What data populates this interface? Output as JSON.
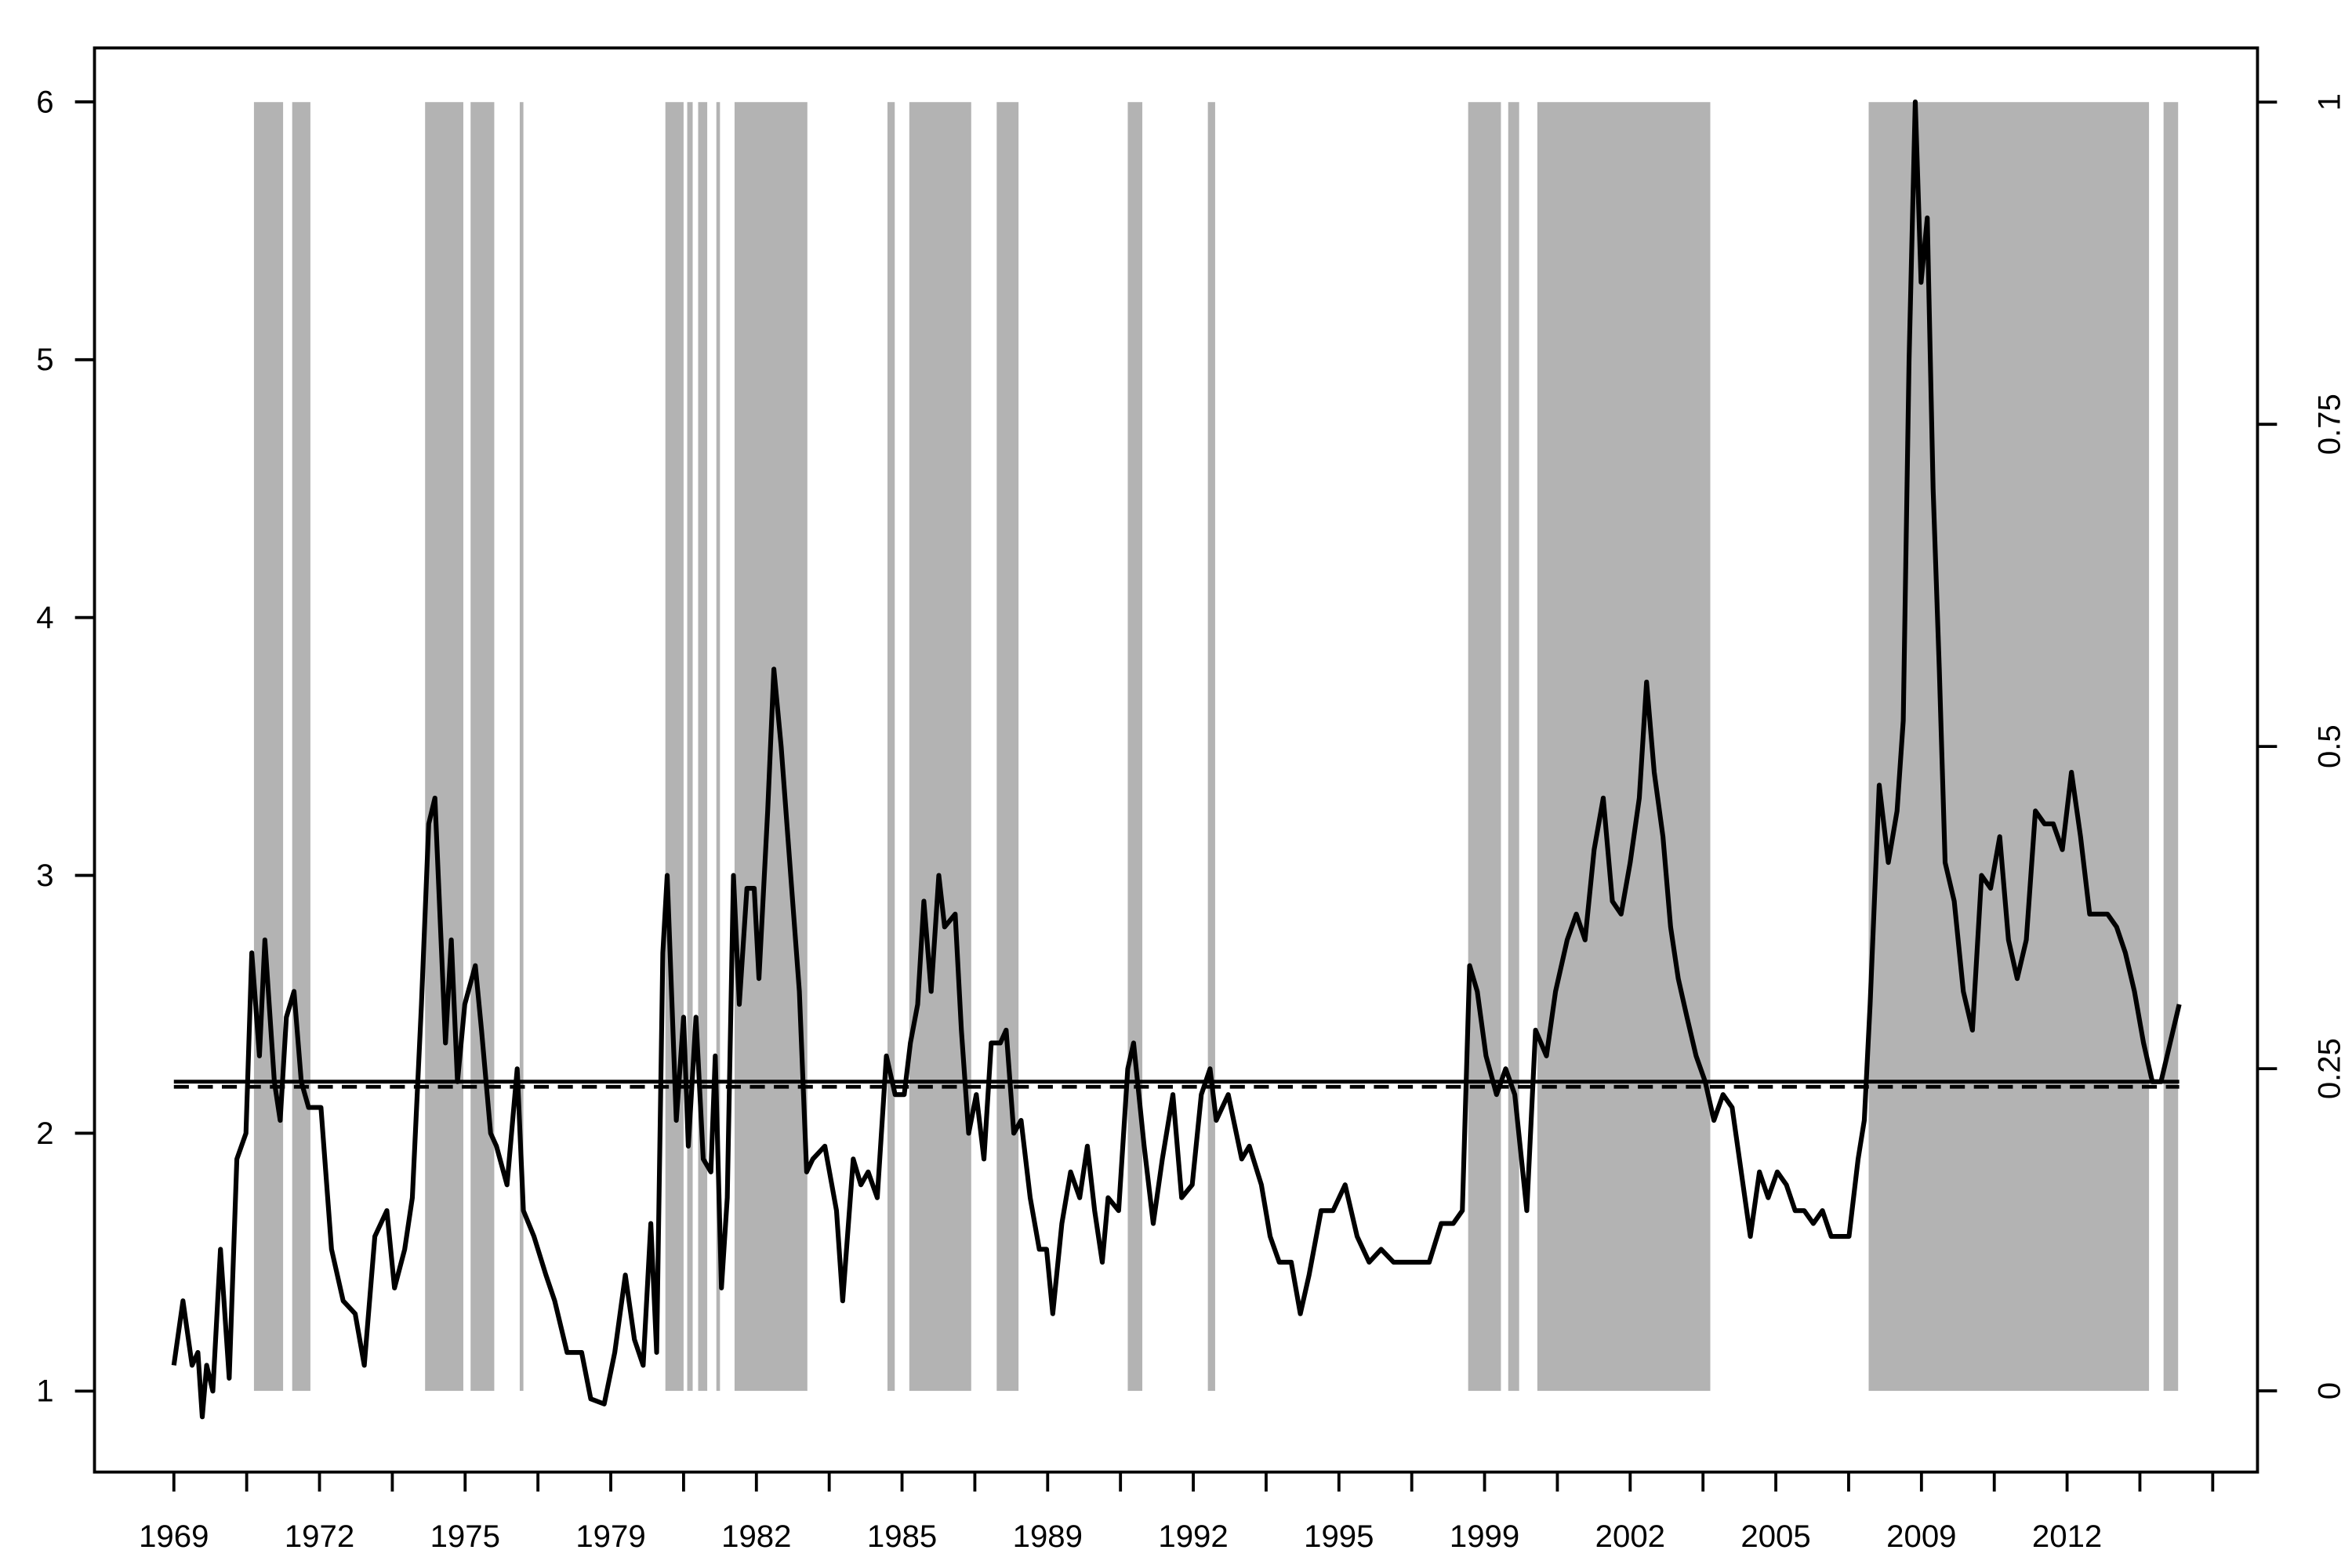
{
  "chart_data": {
    "type": "line",
    "xlim": [
      -21.8,
      572.3
    ],
    "ylim": [
      0.686,
      6.209
    ],
    "y2lim": [
      -0.063,
      1.042
    ],
    "xticks": [
      {
        "value": 0,
        "label": "1969"
      },
      {
        "value": 40,
        "label": "1972"
      },
      {
        "value": 80,
        "label": "1975"
      },
      {
        "value": 120,
        "label": "1979"
      },
      {
        "value": 160,
        "label": "1982"
      },
      {
        "value": 200,
        "label": "1985"
      },
      {
        "value": 240,
        "label": "1989"
      },
      {
        "value": 280,
        "label": "1992"
      },
      {
        "value": 320,
        "label": "1995"
      },
      {
        "value": 360,
        "label": "1999"
      },
      {
        "value": 400,
        "label": "2002"
      },
      {
        "value": 440,
        "label": "2005"
      },
      {
        "value": 480,
        "label": "2009"
      },
      {
        "value": 520,
        "label": "2012"
      }
    ],
    "xminorticks": [
      20,
      60,
      100,
      140,
      180,
      220,
      260,
      300,
      340,
      380,
      420,
      460,
      500,
      540,
      560
    ],
    "yticks": [
      1,
      2,
      3,
      4,
      5,
      6
    ],
    "y2ticks": [
      0,
      0.25,
      0.5,
      0.75,
      1
    ],
    "shading": {
      "axis": "y2",
      "color": "#b3b3b3",
      "bars": [
        {
          "x": [
            22,
            30
          ],
          "value": 1
        },
        {
          "x": [
            32.5,
            37.5
          ],
          "value": 1
        },
        {
          "x": [
            69,
            79.5
          ],
          "value": 1
        },
        {
          "x": [
            81.5,
            88
          ],
          "value": 1
        },
        {
          "x": [
            95,
            96
          ],
          "value": 1
        },
        {
          "x": [
            135,
            140
          ],
          "value": 1
        },
        {
          "x": [
            141,
            142.5
          ],
          "value": 1
        },
        {
          "x": [
            144,
            146.5
          ],
          "value": 1
        },
        {
          "x": [
            149,
            150
          ],
          "value": 1
        },
        {
          "x": [
            154,
            174
          ],
          "value": 1
        },
        {
          "x": [
            196,
            198
          ],
          "value": 1
        },
        {
          "x": [
            202,
            219
          ],
          "value": 1
        },
        {
          "x": [
            226,
            232
          ],
          "value": 1
        },
        {
          "x": [
            262,
            266
          ],
          "value": 1
        },
        {
          "x": [
            284,
            286
          ],
          "value": 1
        },
        {
          "x": [
            355.5,
            364.5
          ],
          "value": 1
        },
        {
          "x": [
            366.5,
            369.5
          ],
          "value": 1
        },
        {
          "x": [
            374.5,
            422
          ],
          "value": 1
        },
        {
          "x": [
            465.5,
            542.5
          ],
          "value": 1
        },
        {
          "x": [
            546.5,
            550.5
          ],
          "value": 1
        }
      ]
    },
    "hlines": [
      {
        "value": 2.2,
        "style": "solid"
      },
      {
        "value": 2.18,
        "style": "dashed"
      }
    ],
    "x": [
      0,
      2.5,
      5,
      6.6,
      7.8,
      9,
      10.7,
      12.8,
      15.2,
      17.3,
      19.8,
      21.4,
      23.5,
      25,
      27.6,
      29.2,
      30.9,
      33,
      35,
      37,
      40.4,
      43.3,
      46.5,
      49.8,
      52.3,
      55.2,
      58.5,
      60.6,
      63.4,
      65.5,
      68,
      70,
      71.7,
      74.6,
      76.2,
      77.9,
      79.9,
      82.8,
      84.5,
      87,
      88.6,
      91.5,
      94.3,
      96,
      98.9,
      102.2,
      104.6,
      108,
      112,
      114.5,
      118.2,
      121.1,
      124,
      126.5,
      128.9,
      131,
      132.6,
      134.3,
      135.5,
      138,
      140,
      141.3,
      143.4,
      145.4,
      147.5,
      148.7,
      150.4,
      152,
      153.7,
      155.3,
      157.4,
      159.4,
      160.7,
      163.1,
      164.8,
      166.8,
      168.9,
      171.8,
      173.8,
      175.5,
      178.8,
      182,
      183.7,
      186.6,
      188.7,
      190.7,
      193.2,
      195.7,
      198.1,
      200.6,
      202.3,
      204.3,
      206,
      208,
      210.1,
      211.7,
      214.6,
      216.3,
      218.3,
      220.4,
      222.5,
      224.5,
      227,
      228.6,
      230.7,
      232.7,
      235.2,
      237.7,
      239.7,
      241.4,
      243.9,
      246.3,
      248.8,
      250.9,
      252.9,
      255,
      256.6,
      259.5,
      262,
      263.6,
      266.5,
      269,
      271.5,
      274.4,
      276.8,
      279.7,
      282.2,
      284.6,
      286.3,
      289.6,
      293.3,
      295.4,
      298.7,
      301.1,
      303.6,
      306.9,
      309.4,
      311.8,
      315.1,
      318.4,
      321.7,
      325,
      328.3,
      331.6,
      335,
      338.2,
      341.5,
      344.8,
      348.1,
      351.4,
      353.9,
      355.9,
      358,
      360.4,
      363.3,
      365.8,
      368.3,
      371.6,
      374,
      377,
      379.5,
      382.7,
      385.2,
      387.6,
      390.1,
      392.6,
      395.1,
      397.5,
      400,
      402.5,
      404.5,
      406.6,
      409,
      411.1,
      413.2,
      415.6,
      418.1,
      420.6,
      423,
      425.5,
      428,
      430.5,
      433,
      435.5,
      437.9,
      440.4,
      442.9,
      445.3,
      447.8,
      450.3,
      452.8,
      455.2,
      457.7,
      460.1,
      462.6,
      464.3,
      465.9,
      468.4,
      470.9,
      473.3,
      475,
      476.6,
      478.3,
      479.9,
      481.6,
      483.2,
      484.9,
      486.5,
      489,
      491.5,
      494,
      496.5,
      499,
      501.5,
      503.9,
      506.3,
      508.8,
      511.3,
      513.8,
      516.2,
      518.7,
      521.2,
      523.7,
      526.2,
      528.6,
      531.1,
      533.6,
      536,
      538.5,
      541,
      543.4,
      545.8,
      548.3,
      550.8
    ],
    "series": [
      {
        "color": "#000000",
        "values": [
          1.1,
          1.35,
          1.1,
          1.15,
          0.9,
          1.1,
          1.0,
          1.55,
          1.05,
          1.9,
          2.0,
          2.7,
          2.3,
          2.75,
          2.2,
          2.05,
          2.45,
          2.55,
          2.2,
          2.1,
          2.1,
          1.55,
          1.35,
          1.3,
          1.1,
          1.6,
          1.7,
          1.4,
          1.55,
          1.75,
          2.5,
          3.2,
          3.3,
          2.35,
          2.75,
          2.2,
          2.5,
          2.65,
          2.4,
          2.0,
          1.95,
          1.8,
          2.25,
          1.7,
          1.6,
          1.45,
          1.35,
          1.15,
          1.15,
          0.97,
          0.95,
          1.15,
          1.45,
          1.2,
          1.1,
          1.65,
          1.15,
          2.7,
          3.0,
          2.05,
          2.45,
          1.95,
          2.45,
          1.9,
          1.85,
          2.3,
          1.4,
          1.75,
          3.0,
          2.5,
          2.95,
          2.95,
          2.6,
          3.25,
          3.8,
          3.5,
          3.1,
          2.55,
          1.85,
          1.9,
          1.95,
          1.7,
          1.35,
          1.9,
          1.8,
          1.85,
          1.75,
          2.3,
          2.15,
          2.15,
          2.35,
          2.5,
          2.9,
          2.55,
          3.0,
          2.8,
          2.85,
          2.4,
          2.0,
          2.15,
          1.9,
          2.35,
          2.35,
          2.4,
          2.0,
          2.05,
          1.75,
          1.55,
          1.55,
          1.3,
          1.65,
          1.85,
          1.75,
          1.95,
          1.7,
          1.5,
          1.75,
          1.7,
          2.25,
          2.35,
          1.95,
          1.65,
          1.9,
          2.15,
          1.75,
          1.8,
          2.15,
          2.25,
          2.05,
          2.15,
          1.9,
          1.95,
          1.8,
          1.6,
          1.5,
          1.5,
          1.3,
          1.45,
          1.7,
          1.7,
          1.8,
          1.6,
          1.5,
          1.55,
          1.5,
          1.5,
          1.5,
          1.5,
          1.65,
          1.65,
          1.7,
          2.65,
          2.55,
          2.3,
          2.15,
          2.25,
          2.15,
          1.7,
          2.4,
          2.3,
          2.55,
          2.75,
          2.85,
          2.75,
          3.1,
          3.3,
          2.9,
          2.85,
          3.05,
          3.3,
          3.75,
          3.4,
          3.15,
          2.8,
          2.6,
          2.45,
          2.3,
          2.2,
          2.05,
          2.15,
          2.1,
          1.85,
          1.6,
          1.85,
          1.75,
          1.85,
          1.8,
          1.7,
          1.7,
          1.65,
          1.7,
          1.6,
          1.6,
          1.6,
          1.9,
          2.05,
          2.5,
          3.35,
          3.05,
          3.25,
          3.6,
          5.0,
          6.0,
          5.3,
          5.55,
          4.5,
          3.8,
          3.05,
          2.9,
          2.55,
          2.4,
          3.0,
          2.95,
          3.15,
          2.75,
          2.6,
          2.75,
          3.25,
          3.2,
          3.2,
          3.1,
          3.4,
          3.15,
          2.85,
          2.85,
          2.85,
          2.8,
          2.7,
          2.55,
          2.35,
          2.2,
          2.2,
          2.35,
          2.5
        ]
      }
    ]
  }
}
